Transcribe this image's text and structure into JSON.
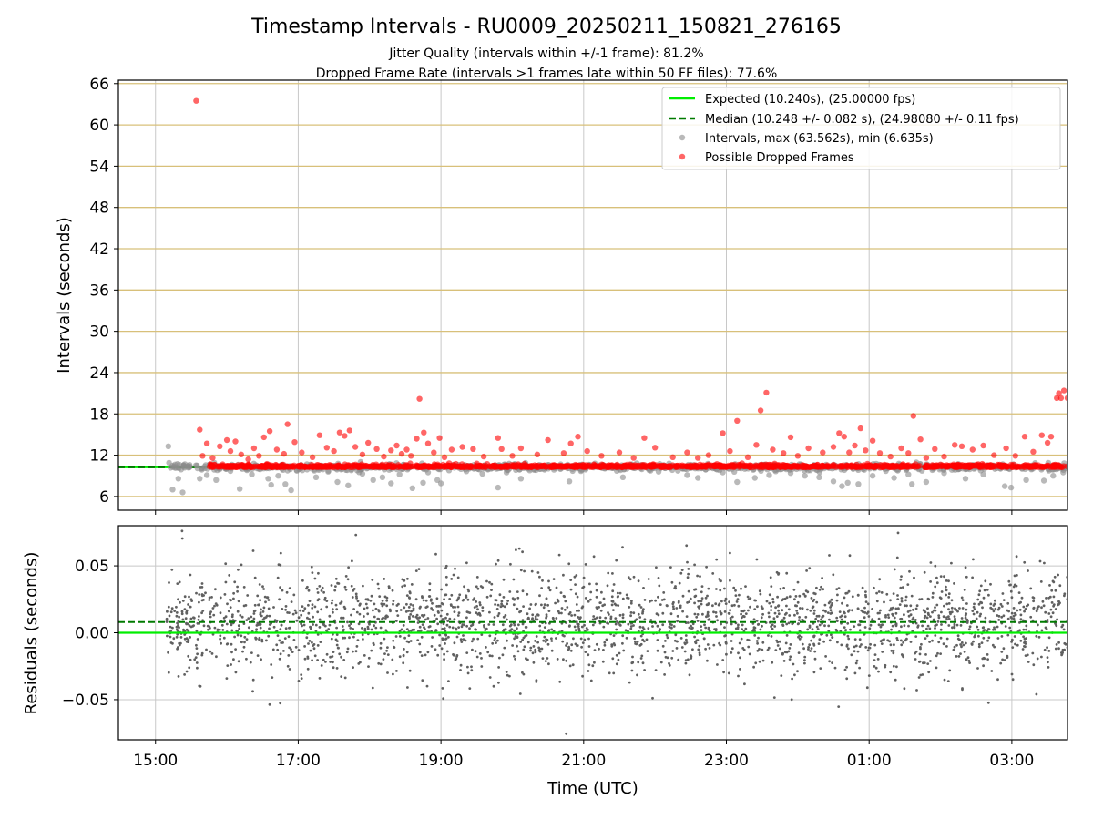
{
  "title": "Timestamp Intervals - RU0009_20250211_150821_276165",
  "subtitle_1": "Jitter Quality (intervals within +/-1 frame): 81.2%",
  "subtitle_2": "Dropped Frame Rate (intervals >1 frames late within 50 FF files): 77.6%",
  "colors": {
    "expected": "#00ee00",
    "median": "#007a00",
    "intervals": "#8a8a8a",
    "dropped": "#ff0000",
    "band": "#d8c07a",
    "grid": "#c8c8c8",
    "residual_points": "#606060"
  },
  "chart_data": [
    {
      "type": "scatter",
      "ylabel": "Intervals (seconds)",
      "ylim": [
        4,
        66.5
      ],
      "xlim": [
        14.48,
        27.78
      ],
      "x_unit": "hours UTC (24+ = next day)",
      "y_ticks": [
        6,
        12,
        18,
        24,
        30,
        36,
        42,
        48,
        54,
        60,
        66
      ],
      "horizontal_bands_at": [
        6,
        12,
        18,
        24,
        30,
        36,
        42,
        48,
        54,
        60,
        66
      ],
      "grid": true,
      "legend_position": "top-right",
      "legend": [
        "Expected (10.240s), (25.00000 fps)",
        "Median (10.248 +/- 0.082 s), (24.98080 +/- 0.11 fps)",
        "Intervals, max (63.562s), min (6.635s)",
        "Possible Dropped Frames"
      ],
      "expected_interval": 10.24,
      "median_interval": 10.248,
      "series": [
        {
          "name": "Intervals, max (63.562s), min (6.635s)",
          "points": [
            [
              15.18,
              13.3
            ],
            [
              15.19,
              10.9
            ],
            [
              15.24,
              7.0
            ],
            [
              15.32,
              8.6
            ],
            [
              15.38,
              6.6
            ],
            [
              15.46,
              10.2
            ],
            [
              15.62,
              8.6
            ],
            [
              15.72,
              9.1
            ],
            [
              15.85,
              8.4
            ],
            [
              16.05,
              9.7
            ],
            [
              16.18,
              7.1
            ],
            [
              16.35,
              9.2
            ],
            [
              16.58,
              8.6
            ],
            [
              16.62,
              7.7
            ],
            [
              16.72,
              9.0
            ],
            [
              16.82,
              7.8
            ],
            [
              16.9,
              6.9
            ],
            [
              17.25,
              8.8
            ],
            [
              17.42,
              9.6
            ],
            [
              17.55,
              8.1
            ],
            [
              17.7,
              7.6
            ],
            [
              17.9,
              9.3
            ],
            [
              18.05,
              8.4
            ],
            [
              18.18,
              8.8
            ],
            [
              18.3,
              7.9
            ],
            [
              18.42,
              9.2
            ],
            [
              18.6,
              7.2
            ],
            [
              18.75,
              8.0
            ],
            [
              18.82,
              9.5
            ],
            [
              18.95,
              8.4
            ],
            [
              19.0,
              7.9
            ],
            [
              19.45,
              10.2
            ],
            [
              19.58,
              9.3
            ],
            [
              19.8,
              7.3
            ],
            [
              20.12,
              8.6
            ],
            [
              20.5,
              10.6
            ],
            [
              20.8,
              8.2
            ],
            [
              21.3,
              10.1
            ],
            [
              21.55,
              8.8
            ],
            [
              21.72,
              10.1
            ],
            [
              22.05,
              9.6
            ],
            [
              22.2,
              10.3
            ],
            [
              22.45,
              9.1
            ],
            [
              22.6,
              8.7
            ],
            [
              22.95,
              9.5
            ],
            [
              23.15,
              8.1
            ],
            [
              23.4,
              8.7
            ],
            [
              23.6,
              9.1
            ],
            [
              23.9,
              9.4
            ],
            [
              24.1,
              9.0
            ],
            [
              24.3,
              8.8
            ],
            [
              24.5,
              8.2
            ],
            [
              24.62,
              7.5
            ],
            [
              24.7,
              8.0
            ],
            [
              24.85,
              7.8
            ],
            [
              25.05,
              9.0
            ],
            [
              25.35,
              8.7
            ],
            [
              25.55,
              9.2
            ],
            [
              25.6,
              7.8
            ],
            [
              25.8,
              8.1
            ],
            [
              26.05,
              9.4
            ],
            [
              26.35,
              8.6
            ],
            [
              26.6,
              9.2
            ],
            [
              26.9,
              7.5
            ],
            [
              26.99,
              7.3
            ],
            [
              27.2,
              8.4
            ],
            [
              27.45,
              8.3
            ],
            [
              27.58,
              9.0
            ],
            [
              27.72,
              9.5
            ]
          ]
        },
        {
          "name": "Possible Dropped Frames",
          "points": [
            [
              15.57,
              63.5
            ],
            [
              15.62,
              15.7
            ],
            [
              15.66,
              11.9
            ],
            [
              15.72,
              13.7
            ],
            [
              15.8,
              11.6
            ],
            [
              15.9,
              13.3
            ],
            [
              16.0,
              14.2
            ],
            [
              16.05,
              12.6
            ],
            [
              16.12,
              14.0
            ],
            [
              16.2,
              12.1
            ],
            [
              16.3,
              11.4
            ],
            [
              16.38,
              13.0
            ],
            [
              16.45,
              11.9
            ],
            [
              16.52,
              14.6
            ],
            [
              16.6,
              15.5
            ],
            [
              16.7,
              12.8
            ],
            [
              16.8,
              12.2
            ],
            [
              16.85,
              16.5
            ],
            [
              16.95,
              13.9
            ],
            [
              17.05,
              12.4
            ],
            [
              17.2,
              11.7
            ],
            [
              17.3,
              14.9
            ],
            [
              17.4,
              13.1
            ],
            [
              17.5,
              12.6
            ],
            [
              17.58,
              15.3
            ],
            [
              17.65,
              14.8
            ],
            [
              17.72,
              15.6
            ],
            [
              17.8,
              13.2
            ],
            [
              17.9,
              12.1
            ],
            [
              17.98,
              13.8
            ],
            [
              18.1,
              12.9
            ],
            [
              18.2,
              11.8
            ],
            [
              18.3,
              12.7
            ],
            [
              18.38,
              13.4
            ],
            [
              18.45,
              12.2
            ],
            [
              18.52,
              12.8
            ],
            [
              18.58,
              11.9
            ],
            [
              18.66,
              14.4
            ],
            [
              18.7,
              20.2
            ],
            [
              18.76,
              15.3
            ],
            [
              18.82,
              13.7
            ],
            [
              18.9,
              12.4
            ],
            [
              18.98,
              14.5
            ],
            [
              19.05,
              11.7
            ],
            [
              19.15,
              12.8
            ],
            [
              19.3,
              13.2
            ],
            [
              19.45,
              12.9
            ],
            [
              19.6,
              11.8
            ],
            [
              19.8,
              14.5
            ],
            [
              19.85,
              12.9
            ],
            [
              20.0,
              11.9
            ],
            [
              20.12,
              13.0
            ],
            [
              20.35,
              12.1
            ],
            [
              20.5,
              14.2
            ],
            [
              20.72,
              12.3
            ],
            [
              20.82,
              13.7
            ],
            [
              20.92,
              14.7
            ],
            [
              21.05,
              12.6
            ],
            [
              21.25,
              11.9
            ],
            [
              21.5,
              12.4
            ],
            [
              21.7,
              11.6
            ],
            [
              21.85,
              14.5
            ],
            [
              22.0,
              13.1
            ],
            [
              22.25,
              11.7
            ],
            [
              22.45,
              12.4
            ],
            [
              22.6,
              11.6
            ],
            [
              22.75,
              12.0
            ],
            [
              22.95,
              15.2
            ],
            [
              23.05,
              12.6
            ],
            [
              23.15,
              17.0
            ],
            [
              23.3,
              11.7
            ],
            [
              23.42,
              13.5
            ],
            [
              23.48,
              18.5
            ],
            [
              23.56,
              21.1
            ],
            [
              23.65,
              12.8
            ],
            [
              23.8,
              12.3
            ],
            [
              23.9,
              14.6
            ],
            [
              24.0,
              11.9
            ],
            [
              24.15,
              13.0
            ],
            [
              24.35,
              12.4
            ],
            [
              24.5,
              13.2
            ],
            [
              24.58,
              15.2
            ],
            [
              24.65,
              14.7
            ],
            [
              24.72,
              12.4
            ],
            [
              24.8,
              13.4
            ],
            [
              24.88,
              15.9
            ],
            [
              24.95,
              12.7
            ],
            [
              25.05,
              14.1
            ],
            [
              25.15,
              12.3
            ],
            [
              25.3,
              11.8
            ],
            [
              25.45,
              13.0
            ],
            [
              25.55,
              12.3
            ],
            [
              25.62,
              17.7
            ],
            [
              25.72,
              14.3
            ],
            [
              25.8,
              11.6
            ],
            [
              25.92,
              12.9
            ],
            [
              26.05,
              11.8
            ],
            [
              26.2,
              13.5
            ],
            [
              26.3,
              13.3
            ],
            [
              26.45,
              12.8
            ],
            [
              26.6,
              13.4
            ],
            [
              26.75,
              12.0
            ],
            [
              26.92,
              13.0
            ],
            [
              27.05,
              11.9
            ],
            [
              27.18,
              14.7
            ],
            [
              27.3,
              12.5
            ],
            [
              27.42,
              14.9
            ],
            [
              27.5,
              13.8
            ],
            [
              27.55,
              14.7
            ],
            [
              27.63,
              20.3
            ],
            [
              27.66,
              21.0
            ],
            [
              27.69,
              20.3
            ],
            [
              27.73,
              21.4
            ],
            [
              27.78,
              20.3
            ]
          ]
        }
      ]
    },
    {
      "type": "scatter",
      "ylabel": "Residuals (seconds)",
      "xlabel": "Time (UTC)",
      "ylim": [
        -0.08,
        0.08
      ],
      "xlim": [
        14.48,
        27.78
      ],
      "y_ticks": [
        0.05,
        0.0,
        -0.05
      ],
      "y_tick_labels": [
        "0.05",
        "0.00",
        "−0.05"
      ],
      "x_ticks": [
        15,
        17,
        19,
        21,
        23,
        25,
        27
      ],
      "x_tick_labels": [
        "15:00",
        "17:00",
        "19:00",
        "21:00",
        "23:00",
        "01:00",
        "03:00"
      ],
      "grid": true,
      "expected_residual": 0.0,
      "median_residual": 0.008,
      "residual_spread_std": 0.018
    }
  ]
}
